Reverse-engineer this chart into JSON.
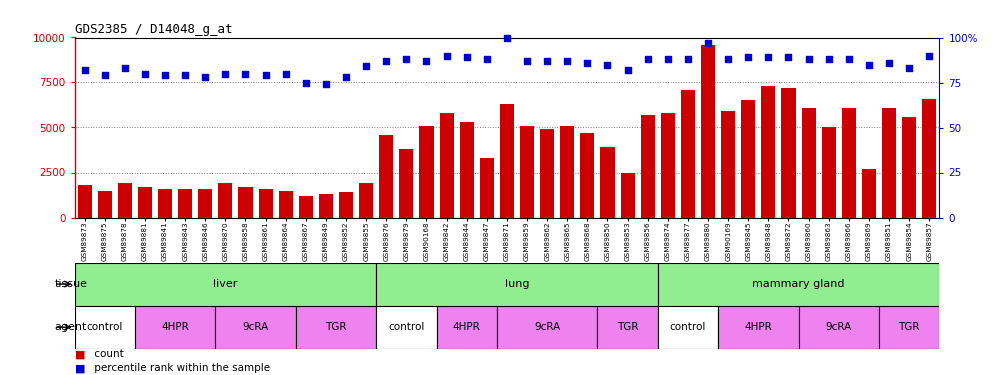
{
  "title": "GDS2385 / D14048_g_at",
  "samples": [
    "GSM89873",
    "GSM89875",
    "GSM89878",
    "GSM89881",
    "GSM89841",
    "GSM89843",
    "GSM89846",
    "GSM89870",
    "GSM89858",
    "GSM89861",
    "GSM89864",
    "GSM89867",
    "GSM89849",
    "GSM89852",
    "GSM89855",
    "GSM89876",
    "GSM89879",
    "GSM90168",
    "GSM89842",
    "GSM89844",
    "GSM89847",
    "GSM89871",
    "GSM89859",
    "GSM89862",
    "GSM89865",
    "GSM89868",
    "GSM89850",
    "GSM89853",
    "GSM89856",
    "GSM89874",
    "GSM89877",
    "GSM89880",
    "GSM90169",
    "GSM89845",
    "GSM89848",
    "GSM89872",
    "GSM89860",
    "GSM89863",
    "GSM89866",
    "GSM89869",
    "GSM89851",
    "GSM89854",
    "GSM89857"
  ],
  "counts": [
    1800,
    1500,
    1900,
    1700,
    1600,
    1600,
    1600,
    1900,
    1700,
    1600,
    1500,
    1200,
    1300,
    1400,
    1900,
    4600,
    3800,
    5100,
    5800,
    5300,
    3300,
    6300,
    5100,
    4900,
    5100,
    4700,
    3900,
    2500,
    5700,
    5800,
    7100,
    9600,
    5900,
    6500,
    7300,
    7200,
    6100,
    5000,
    6100,
    2700,
    6100,
    5600,
    6600
  ],
  "percentile_ranks": [
    82,
    79,
    83,
    80,
    79,
    79,
    78,
    80,
    80,
    79,
    80,
    75,
    74,
    78,
    84,
    87,
    88,
    87,
    90,
    89,
    88,
    100,
    87,
    87,
    87,
    86,
    85,
    82,
    88,
    88,
    88,
    97,
    88,
    89,
    89,
    89,
    88,
    88,
    88,
    85,
    86,
    83,
    90
  ],
  "tissue_groups": [
    {
      "label": "liver",
      "start": 0,
      "end": 15
    },
    {
      "label": "lung",
      "start": 15,
      "end": 29
    },
    {
      "label": "mammary gland",
      "start": 29,
      "end": 43
    }
  ],
  "agent_segs": [
    {
      "label": "control",
      "start": 0,
      "end": 3,
      "color": "#FFFFFF"
    },
    {
      "label": "4HPR",
      "start": 3,
      "end": 7,
      "color": "#EE82EE"
    },
    {
      "label": "9cRA",
      "start": 7,
      "end": 11,
      "color": "#EE82EE"
    },
    {
      "label": "TGR",
      "start": 11,
      "end": 15,
      "color": "#EE82EE"
    },
    {
      "label": "control",
      "start": 15,
      "end": 18,
      "color": "#FFFFFF"
    },
    {
      "label": "4HPR",
      "start": 18,
      "end": 21,
      "color": "#EE82EE"
    },
    {
      "label": "9cRA",
      "start": 21,
      "end": 26,
      "color": "#EE82EE"
    },
    {
      "label": "TGR",
      "start": 26,
      "end": 29,
      "color": "#EE82EE"
    },
    {
      "label": "control",
      "start": 29,
      "end": 32,
      "color": "#FFFFFF"
    },
    {
      "label": "4HPR",
      "start": 32,
      "end": 36,
      "color": "#EE82EE"
    },
    {
      "label": "9cRA",
      "start": 36,
      "end": 40,
      "color": "#EE82EE"
    },
    {
      "label": "TGR",
      "start": 40,
      "end": 43,
      "color": "#EE82EE"
    }
  ],
  "tissue_color": "#90EE90",
  "bar_color": "#CC0000",
  "dot_color": "#0000CC",
  "left_ylim": [
    0,
    10000
  ],
  "left_yticks": [
    0,
    2500,
    5000,
    7500,
    10000
  ],
  "right_ylim": [
    0,
    100
  ],
  "right_yticks": [
    0,
    25,
    50,
    75,
    100
  ],
  "bg_color": "#FFFFFF"
}
